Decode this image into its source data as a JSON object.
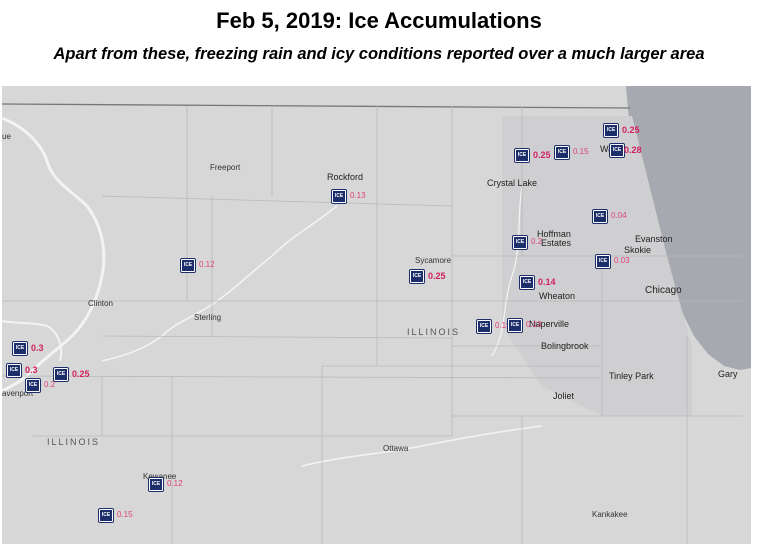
{
  "title": "Feb 5, 2019:  Ice Accumulations",
  "subtitle": "Apart from these, freezing rain and icy conditions reported over a much larger area",
  "colors": {
    "map_bg": "#d7d7d8",
    "lake": "#a7a9b0",
    "marker": "#1d2f6a",
    "value": "#e0407a"
  },
  "icon": "ice-marker-icon",
  "states": [
    "ILLINOIS",
    "ILLINOIS"
  ],
  "cities": {
    "freeport": "Freeport",
    "rockford": "Rockford",
    "crystal_lake": "Crystal Lake",
    "waukegan": "Wau",
    "hoffman": "Hoffman",
    "estates": "Estates",
    "evanston": "Evanston",
    "skokie": "Skokie",
    "sycamore": "Sycamore",
    "wheaton": "Wheaton",
    "chicago": "Chicago",
    "naperville": "Naperville",
    "bolingbrook": "Bolingbrook",
    "tinley_park": "Tinley Park",
    "gary": "Gary",
    "joliet": "Joliet",
    "clinton": "Clinton",
    "sterling": "Sterling",
    "davenport": "avenport",
    "ottawa": "Ottawa",
    "kankakee": "Kankakee",
    "kewanee": "Kewanee",
    "ue": "ue"
  },
  "reports": [
    {
      "value": "0.25",
      "bold": true
    },
    {
      "value": "0.28",
      "bold": true
    },
    {
      "value": "0.25",
      "bold": true
    },
    {
      "value": "0.15",
      "bold": false
    },
    {
      "value": "0.13",
      "bold": false
    },
    {
      "value": "0.04",
      "bold": false
    },
    {
      "value": "0.2",
      "bold": false
    },
    {
      "value": "0.03",
      "bold": false
    },
    {
      "value": "0.25",
      "bold": true
    },
    {
      "value": "0.12",
      "bold": false
    },
    {
      "value": "0.14",
      "bold": true
    },
    {
      "value": "0.15",
      "bold": false
    },
    {
      "value": "0.13",
      "bold": false
    },
    {
      "value": "0.3",
      "bold": true
    },
    {
      "value": "0.3",
      "bold": true
    },
    {
      "value": "0.25",
      "bold": true
    },
    {
      "value": "0.2",
      "bold": false
    },
    {
      "value": "0.12",
      "bold": false
    },
    {
      "value": "0.15",
      "bold": false
    }
  ]
}
